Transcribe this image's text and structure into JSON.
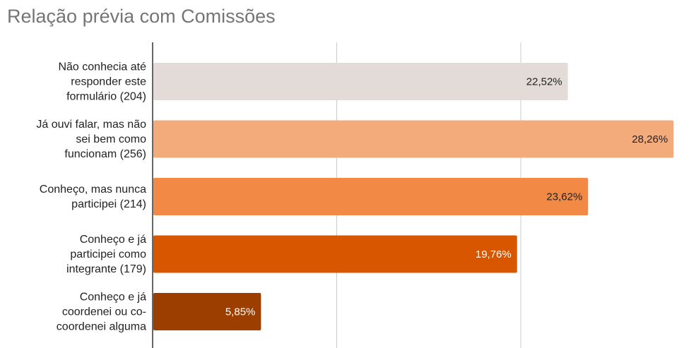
{
  "chart_data": {
    "type": "bar",
    "orientation": "horizontal",
    "title": "Relação prévia com Comissões",
    "categories": [
      "Não conhecia até responder este formulário (204)",
      "Já ouvi falar, mas não sei bem como funcionam (256)",
      "Conheço, mas nunca participei (214)",
      "Conheço e já participei como integrante (179)",
      "Conheço e já coordenei ou co-coordenei alguma"
    ],
    "category_lines": [
      [
        "Não conhecia até",
        "responder este",
        "formulário (204)"
      ],
      [
        "Já ouvi falar, mas não",
        "sei bem como",
        "funcionam (256)"
      ],
      [
        "Conheço, mas nunca",
        "participei (214)"
      ],
      [
        "Conheço e já",
        "participei como",
        "integrante (179)"
      ],
      [
        "Conheço e já",
        "coordenei ou co-",
        "coordenei alguma"
      ]
    ],
    "values": [
      22.52,
      28.26,
      23.62,
      19.76,
      5.85
    ],
    "value_labels": [
      "22,52%",
      "28,26%",
      "23,62%",
      "19,76%",
      "5,85%"
    ],
    "colors": [
      "#e2dbd8",
      "#f4ab7c",
      "#f28a46",
      "#d95600",
      "#9c3e00"
    ],
    "label_colors": [
      "#222222",
      "#222222",
      "#222222",
      "#ffffff",
      "#ffffff"
    ],
    "xlim": [
      0,
      30
    ],
    "grid": true,
    "legend": "none"
  }
}
